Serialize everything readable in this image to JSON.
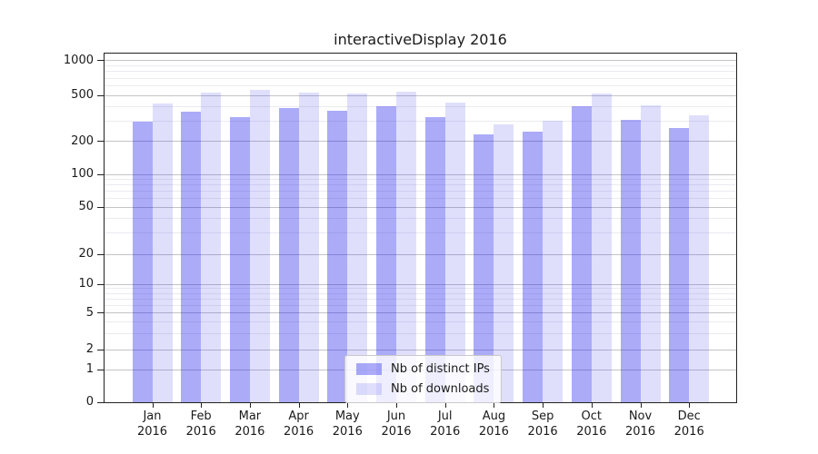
{
  "chart_data": {
    "type": "bar",
    "title": "interactiveDisplay 2016",
    "categories": [
      "Jan",
      "Feb",
      "Mar",
      "Apr",
      "May",
      "Jun",
      "Jul",
      "Aug",
      "Sep",
      "Oct",
      "Nov",
      "Dec"
    ],
    "x_tick_second_line": "2016",
    "series": [
      {
        "name": "Nb of distinct IPs",
        "color": "rgba(13,13,235,0.35)",
        "values": [
          297,
          361,
          322,
          388,
          368,
          401,
          322,
          229,
          240,
          401,
          305,
          262
        ]
      },
      {
        "name": "Nb of downloads",
        "color": "rgba(13,13,235,0.135)",
        "values": [
          424,
          525,
          556,
          524,
          516,
          538,
          432,
          280,
          301,
          518,
          409,
          337
        ]
      }
    ],
    "yscale": "symlog",
    "ylim": [
      0,
      1000
    ],
    "y_major_ticks": [
      0,
      1,
      2,
      5,
      10,
      20,
      50,
      100,
      200,
      500,
      1000
    ],
    "y_minor_gridlines": [
      3,
      4,
      6,
      7,
      8,
      9,
      30,
      40,
      60,
      70,
      80,
      90,
      300,
      400,
      600,
      700,
      800,
      900
    ],
    "grid": "horizontal major and minor gridlines",
    "legend_position": "lower center",
    "colors": {
      "background": "#ffffff",
      "axis": "#222222",
      "text": "#1a1a1a",
      "major_grid": "#c4c4c9",
      "minor_grid": "#ebebf0"
    }
  }
}
